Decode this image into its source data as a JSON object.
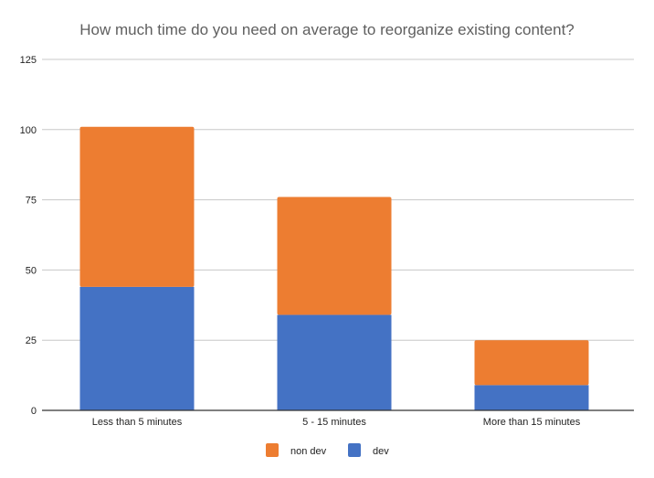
{
  "chart_data": {
    "type": "bar",
    "stacked": true,
    "title": "How much time do you need on average to reorganize existing content?",
    "xlabel": "",
    "ylabel": "",
    "categories": [
      "Less than 5 minutes",
      "5 - 15 minutes",
      "More than 15 minutes"
    ],
    "series": [
      {
        "name": "dev",
        "color": "#4472c4",
        "values": [
          44,
          34,
          9
        ]
      },
      {
        "name": "non dev",
        "color": "#ed7d31",
        "values": [
          57,
          42,
          16
        ]
      }
    ],
    "ylim": [
      0,
      125
    ],
    "yticks": [
      "0",
      "25",
      "50",
      "75",
      "100",
      "125"
    ],
    "grid": true,
    "legend_position": "bottom",
    "legend": [
      "non dev",
      "dev"
    ]
  }
}
